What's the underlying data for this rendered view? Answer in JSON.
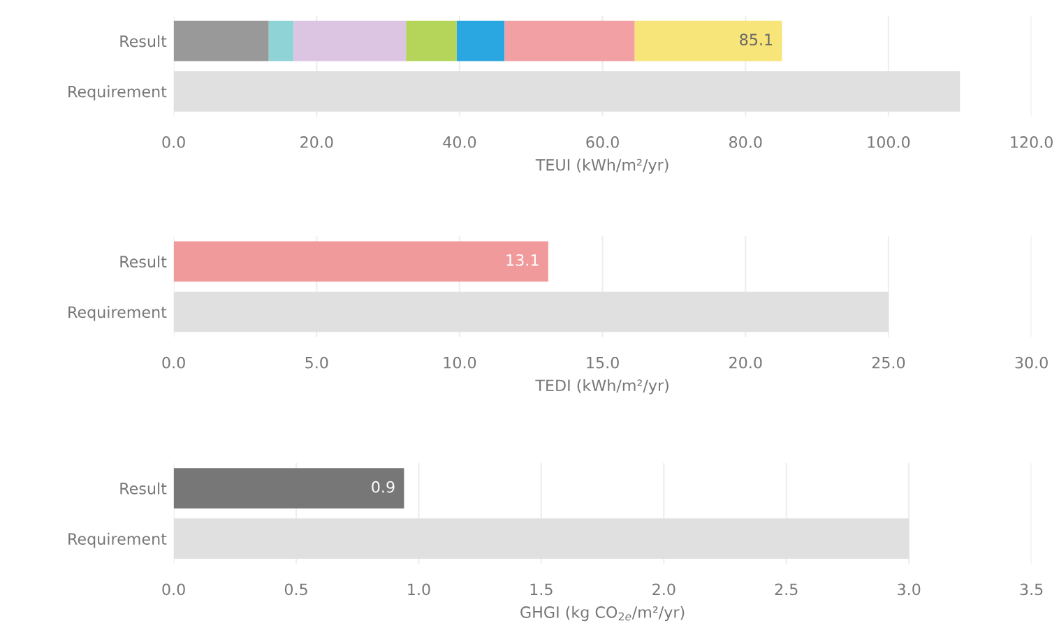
{
  "chart_data": [
    {
      "type": "bar",
      "orientation": "horizontal",
      "stacked": true,
      "categories": [
        "Result",
        "Requirement"
      ],
      "xlabel": "TEUI (kWh/m²/yr)",
      "xlim": [
        0,
        120
      ],
      "xticks": [
        {
          "value": 0,
          "label": "0.0"
        },
        {
          "value": 20,
          "label": "20.0"
        },
        {
          "value": 40,
          "label": "40.0"
        },
        {
          "value": 60,
          "label": "60.0"
        },
        {
          "value": 80,
          "label": "80.0"
        },
        {
          "value": 100,
          "label": "100.0"
        },
        {
          "value": 120,
          "label": "120.0"
        }
      ],
      "grid": "x",
      "legend": false,
      "totals": [
        "85.1",
        null
      ],
      "series": [
        {
          "color": "#999999",
          "values": [
            13.3,
            null
          ]
        },
        {
          "color": "#8fd3d6",
          "values": [
            3.5,
            null
          ]
        },
        {
          "color": "#dcc5e3",
          "values": [
            15.7,
            null
          ]
        },
        {
          "color": "#b5d55a",
          "values": [
            7.1,
            null
          ]
        },
        {
          "color": "#2aa6e0",
          "values": [
            6.7,
            null
          ]
        },
        {
          "color": "#f2a0a3",
          "values": [
            18.2,
            null
          ]
        },
        {
          "color": "#f7e57a",
          "values": [
            20.6,
            null
          ]
        },
        {
          "color": "#e0e0e0",
          "values": [
            null,
            110
          ]
        }
      ]
    },
    {
      "type": "bar",
      "orientation": "horizontal",
      "stacked": true,
      "categories": [
        "Result",
        "Requirement"
      ],
      "xlabel": "TEDI (kWh/m²/yr)",
      "xlim": [
        0,
        30
      ],
      "xticks": [
        {
          "value": 0,
          "label": "0.0"
        },
        {
          "value": 5,
          "label": "5.0"
        },
        {
          "value": 10,
          "label": "10.0"
        },
        {
          "value": 15,
          "label": "15.0"
        },
        {
          "value": 20,
          "label": "20.0"
        },
        {
          "value": 25,
          "label": "25.0"
        },
        {
          "value": 30,
          "label": "30.0"
        }
      ],
      "grid": "x",
      "legend": false,
      "series": [
        {
          "color": "#f09a9c",
          "values": [
            13.1,
            null
          ],
          "value_labels": [
            "13.1",
            null
          ]
        },
        {
          "color": "#e0e0e0",
          "values": [
            null,
            25
          ]
        }
      ]
    },
    {
      "type": "bar",
      "orientation": "horizontal",
      "stacked": true,
      "categories": [
        "Result",
        "Requirement"
      ],
      "xlabel": "GHGI (kg CO$_{2e}$/m²/yr)",
      "xlim": [
        0,
        3.5
      ],
      "xticks": [
        {
          "value": 0,
          "label": "0.0"
        },
        0.5,
        {
          "value": 1,
          "label": "1.0"
        },
        1.5,
        {
          "value": 2,
          "label": "2.0"
        },
        2.5,
        {
          "value": 3,
          "label": "3.0"
        },
        3.5
      ],
      "grid": "x",
      "legend": false,
      "series": [
        {
          "color": "#777777",
          "values": [
            0.94,
            null
          ],
          "value_labels": [
            "0.9",
            null
          ]
        },
        {
          "color": "#e0e0e0",
          "values": [
            null,
            3.0
          ]
        }
      ]
    }
  ]
}
